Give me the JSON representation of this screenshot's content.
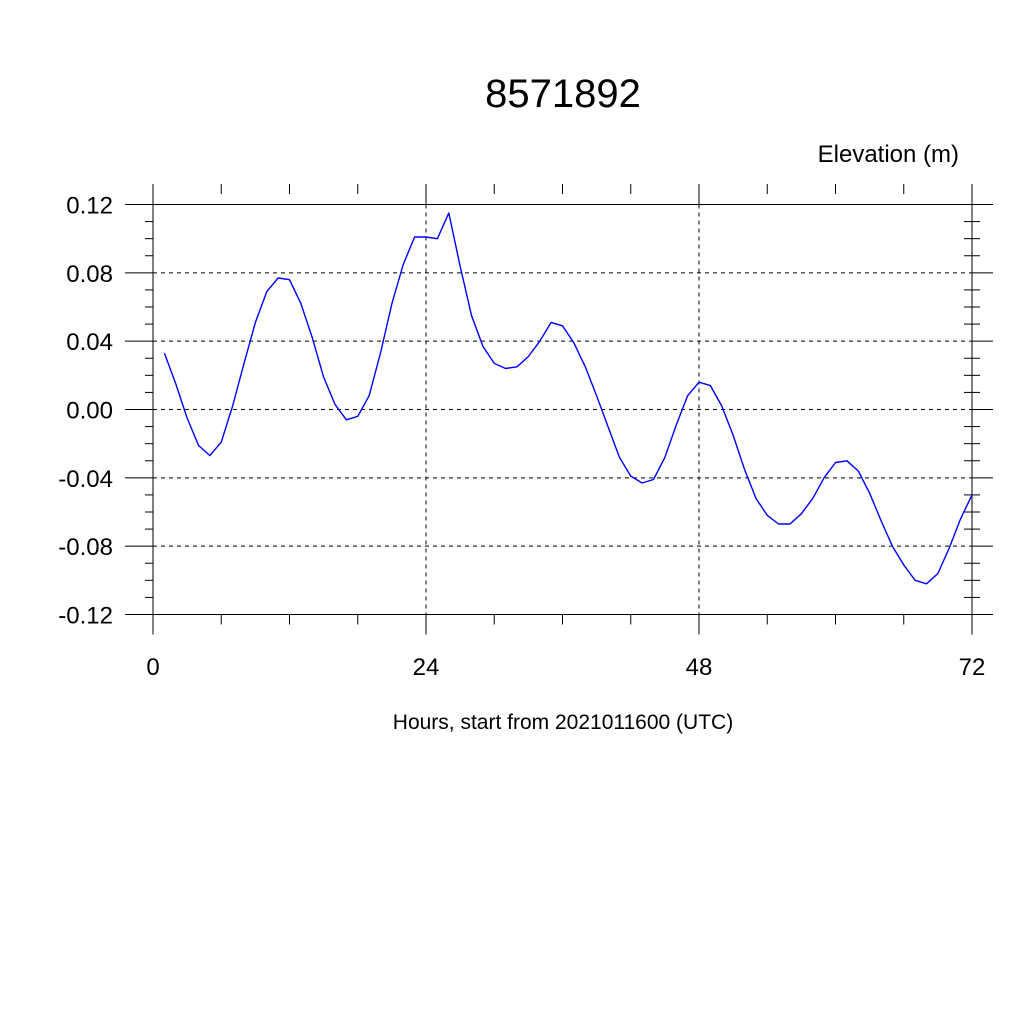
{
  "chart_data": {
    "type": "line",
    "title": "8571892",
    "ylabel": "Elevation (m)",
    "xlabel": "Hours, start from 2021011600 (UTC)",
    "xlim": [
      0,
      72
    ],
    "ylim": [
      -0.12,
      0.12
    ],
    "x_ticks": [
      0,
      24,
      48,
      72
    ],
    "x_tick_labels": [
      "0",
      "24",
      "48",
      "72"
    ],
    "x_minor_step": 6,
    "y_ticks": [
      0.12,
      0.08,
      0.04,
      0.0,
      -0.04,
      -0.08,
      -0.12
    ],
    "y_tick_labels": [
      "0.12",
      "0.08",
      "0.04",
      "0.00",
      "-0.04",
      "-0.08",
      "-0.12"
    ],
    "y_minor_step": 0.01,
    "grid": true,
    "line_color": "#0000ff",
    "series": [
      {
        "x": [
          1,
          2,
          3,
          4,
          5,
          6,
          7,
          8,
          9,
          10,
          11,
          12,
          13,
          14,
          15,
          16,
          17,
          18,
          19,
          20,
          21,
          22,
          23,
          24,
          25,
          26,
          27,
          28,
          29,
          30,
          31,
          32,
          33,
          34,
          35,
          36,
          37,
          38,
          39,
          40,
          41,
          42,
          43,
          44,
          45,
          46,
          47,
          48,
          49,
          50,
          51,
          52,
          53,
          54,
          55,
          56,
          57,
          58,
          59,
          60,
          61,
          62,
          63,
          64,
          65,
          66,
          67,
          68,
          69,
          70,
          71,
          72
        ],
        "y": [
          0.033,
          0.015,
          -0.005,
          -0.021,
          -0.027,
          -0.019,
          0.002,
          0.027,
          0.051,
          0.069,
          0.077,
          0.076,
          0.062,
          0.042,
          0.019,
          0.003,
          -0.006,
          -0.004,
          0.008,
          0.033,
          0.062,
          0.085,
          0.101,
          0.101,
          0.1,
          0.115,
          0.084,
          0.055,
          0.037,
          0.027,
          0.024,
          0.025,
          0.031,
          0.04,
          0.051,
          0.049,
          0.039,
          0.025,
          0.008,
          -0.01,
          -0.028,
          -0.039,
          -0.043,
          -0.041,
          -0.028,
          -0.009,
          0.008,
          0.016,
          0.014,
          0.002,
          -0.015,
          -0.035,
          -0.052,
          -0.062,
          -0.067,
          -0.067,
          -0.061,
          -0.052,
          -0.04,
          -0.031,
          -0.03,
          -0.036,
          -0.049,
          -0.065,
          -0.08,
          -0.091,
          -0.1,
          -0.102,
          -0.096,
          -0.081,
          -0.064,
          -0.05
        ]
      }
    ]
  }
}
